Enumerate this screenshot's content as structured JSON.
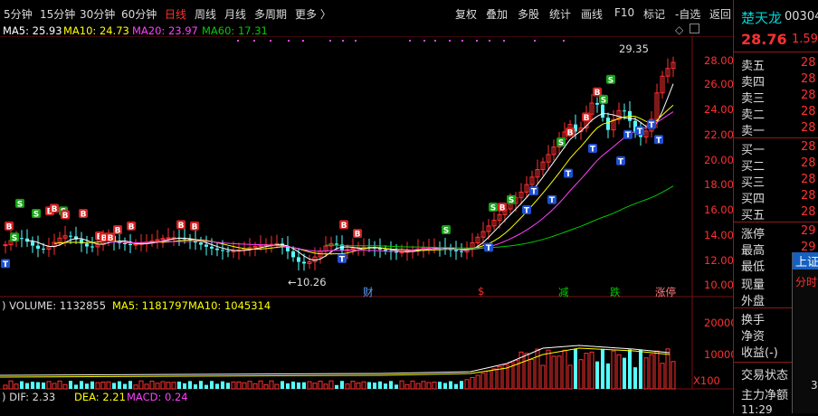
{
  "toolbar": {
    "periods": [
      "5分钟",
      "15分钟",
      "30分钟",
      "60分钟",
      "日线",
      "周线",
      "月线",
      "多周期",
      "更多 〉"
    ],
    "active_period": "日线",
    "actions": [
      "复权",
      "叠加",
      "多股",
      "统计",
      "画线",
      "F10",
      "标记",
      "-自选",
      "返回"
    ]
  },
  "ma_line": {
    "ma5": "MA5: 25.93",
    "ma10": "MA10: 24.73",
    "ma20": "MA20: 23.97",
    "ma60": "MA60: 17.31"
  },
  "price_axis": [
    "28.00",
    "26.00",
    "24.00",
    "22.00",
    "20.00",
    "18.00",
    "16.00",
    "14.00",
    "12.00",
    "10.00"
  ],
  "annotations": {
    "high": "29.35",
    "low": "10.26",
    "event_markers": [
      "财",
      "$",
      "减",
      "跌",
      "涨停"
    ]
  },
  "volume": {
    "title": ") VOLUME: 1132855",
    "ma5": "MA5: 1181797",
    "ma10": "MA10: 1045314",
    "axis": [
      "20000",
      "10000"
    ],
    "unit": "X100"
  },
  "macd": {
    "dif": ") DIF: 2.33",
    "dea": "DEA: 2.21",
    "macd": "MACD: 0.24"
  },
  "stock": {
    "name": "楚天龙",
    "code": "00304",
    "price": "28.76",
    "change": "1.59"
  },
  "order_book": {
    "labels": [
      "卖五",
      "卖四",
      "卖三",
      "卖二",
      "卖一",
      "买一",
      "买二",
      "买三",
      "买四",
      "买五"
    ],
    "values": [
      "28",
      "28",
      "28",
      "28",
      "28",
      "28",
      "28",
      "28",
      "28",
      "28"
    ]
  },
  "stats": {
    "labels": [
      "涨停",
      "最高",
      "最低",
      "现量",
      "外盘",
      "换手",
      "净资",
      "收益(-)",
      "交易状态",
      "主力净额"
    ],
    "values": [
      "29",
      "29",
      "",
      "",
      "",
      "",
      "",
      "",
      "",
      ""
    ]
  },
  "index_popup": {
    "title": "上证",
    "tab": "分时",
    "value": "3"
  },
  "time_footer": "11:29",
  "colors": {
    "up": "#ff3030",
    "down": "#54ffff",
    "ma5": "#ffffff",
    "ma10": "#ffff00",
    "ma20": "#ff40ff",
    "ma60": "#00cc00",
    "grid": "#7a1010"
  }
}
